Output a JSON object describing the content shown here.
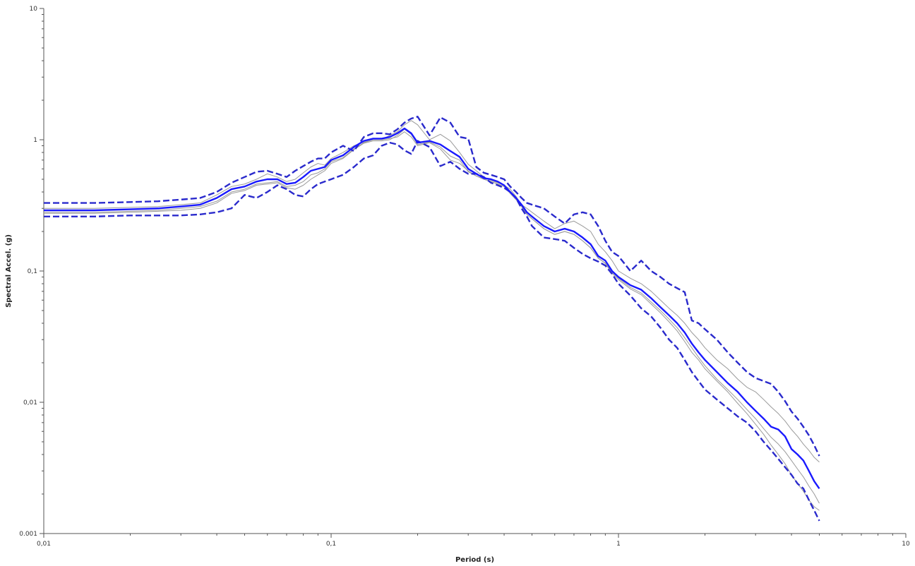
{
  "colors": {
    "background": "#ffffff",
    "axis": "#555555",
    "median": "#1a1aff",
    "bounds": "#2a2acc",
    "records": "#9a9a9a"
  },
  "chart_data": {
    "type": "line",
    "title": "",
    "xlabel": "Period (s)",
    "ylabel": "Spectral Accel. (g)",
    "xscale": "log",
    "yscale": "log",
    "xlim": [
      0.01,
      10
    ],
    "ylim": [
      0.001,
      10
    ],
    "grid": false,
    "legend": "none",
    "x_ticks": [
      {
        "value": 0.01,
        "label": "0,01"
      },
      {
        "value": 0.1,
        "label": "0,1"
      },
      {
        "value": 1,
        "label": "1"
      },
      {
        "value": 10,
        "label": "10"
      }
    ],
    "y_ticks": [
      {
        "value": 0.001,
        "label": "0.001"
      },
      {
        "value": 0.01,
        "label": "0,01"
      },
      {
        "value": 0.1,
        "label": "0,1"
      },
      {
        "value": 1,
        "label": "1"
      },
      {
        "value": 10,
        "label": "10"
      }
    ],
    "x": [
      0.01,
      0.015,
      0.02,
      0.025,
      0.03,
      0.035,
      0.04,
      0.045,
      0.05,
      0.055,
      0.06,
      0.065,
      0.07,
      0.075,
      0.08,
      0.085,
      0.09,
      0.095,
      0.1,
      0.11,
      0.12,
      0.13,
      0.14,
      0.15,
      0.16,
      0.17,
      0.18,
      0.19,
      0.2,
      0.22,
      0.24,
      0.26,
      0.28,
      0.3,
      0.32,
      0.34,
      0.36,
      0.38,
      0.4,
      0.42,
      0.44,
      0.46,
      0.48,
      0.5,
      0.55,
      0.6,
      0.65,
      0.7,
      0.75,
      0.8,
      0.85,
      0.9,
      0.95,
      1,
      1.1,
      1.2,
      1.3,
      1.4,
      1.5,
      1.6,
      1.7,
      1.8,
      1.9,
      2,
      2.2,
      2.4,
      2.6,
      2.8,
      3,
      3.2,
      3.4,
      3.6,
      3.8,
      4,
      4.2,
      4.4,
      4.6,
      4.8,
      5
    ],
    "series": [
      {
        "role": "median",
        "style": "solid",
        "values": [
          0.29,
          0.29,
          0.295,
          0.3,
          0.31,
          0.32,
          0.36,
          0.42,
          0.44,
          0.48,
          0.5,
          0.5,
          0.46,
          0.47,
          0.52,
          0.58,
          0.6,
          0.62,
          0.7,
          0.76,
          0.88,
          0.98,
          1.02,
          1.02,
          1.05,
          1.12,
          1.22,
          1.12,
          0.95,
          0.98,
          0.92,
          0.82,
          0.74,
          0.6,
          0.55,
          0.51,
          0.5,
          0.48,
          0.45,
          0.4,
          0.36,
          0.32,
          0.28,
          0.26,
          0.22,
          0.2,
          0.21,
          0.2,
          0.18,
          0.16,
          0.13,
          0.12,
          0.1,
          0.09,
          0.078,
          0.072,
          0.062,
          0.053,
          0.046,
          0.04,
          0.034,
          0.028,
          0.024,
          0.021,
          0.017,
          0.014,
          0.012,
          0.01,
          0.0086,
          0.0075,
          0.0065,
          0.0062,
          0.0055,
          0.0044,
          0.004,
          0.0036,
          0.003,
          0.0025,
          0.0022
        ]
      },
      {
        "role": "upper",
        "style": "dashed",
        "values": [
          0.33,
          0.33,
          0.335,
          0.34,
          0.35,
          0.36,
          0.4,
          0.47,
          0.52,
          0.57,
          0.58,
          0.55,
          0.52,
          0.58,
          0.63,
          0.68,
          0.72,
          0.72,
          0.8,
          0.9,
          0.82,
          1.05,
          1.12,
          1.12,
          1.1,
          1.2,
          1.35,
          1.45,
          1.5,
          1.08,
          1.48,
          1.35,
          1.05,
          1.02,
          0.62,
          0.56,
          0.54,
          0.52,
          0.5,
          0.44,
          0.4,
          0.36,
          0.33,
          0.32,
          0.3,
          0.26,
          0.23,
          0.27,
          0.28,
          0.27,
          0.22,
          0.17,
          0.14,
          0.13,
          0.1,
          0.12,
          0.1,
          0.09,
          0.08,
          0.074,
          0.069,
          0.042,
          0.04,
          0.036,
          0.03,
          0.024,
          0.02,
          0.017,
          0.0153,
          0.0145,
          0.0138,
          0.012,
          0.0102,
          0.0085,
          0.0075,
          0.0065,
          0.0056,
          0.0047,
          0.0039
        ]
      },
      {
        "role": "lower",
        "style": "dashed",
        "values": [
          0.26,
          0.26,
          0.265,
          0.265,
          0.265,
          0.27,
          0.28,
          0.3,
          0.38,
          0.36,
          0.4,
          0.45,
          0.42,
          0.38,
          0.37,
          0.42,
          0.46,
          0.48,
          0.5,
          0.54,
          0.62,
          0.72,
          0.76,
          0.9,
          0.95,
          0.92,
          0.83,
          0.78,
          0.98,
          0.88,
          0.63,
          0.68,
          0.6,
          0.55,
          0.55,
          0.52,
          0.47,
          0.45,
          0.43,
          0.4,
          0.36,
          0.3,
          0.26,
          0.22,
          0.18,
          0.175,
          0.17,
          0.15,
          0.135,
          0.125,
          0.118,
          0.11,
          0.095,
          0.08,
          0.065,
          0.052,
          0.045,
          0.037,
          0.03,
          0.026,
          0.021,
          0.017,
          0.0145,
          0.0125,
          0.0105,
          0.009,
          0.0078,
          0.007,
          0.006,
          0.005,
          0.0043,
          0.0037,
          0.0032,
          0.0028,
          0.0024,
          0.0022,
          0.0018,
          0.0015,
          0.00125
        ]
      },
      {
        "role": "record",
        "style": "thin",
        "values": [
          0.3,
          0.3,
          0.305,
          0.31,
          0.32,
          0.33,
          0.38,
          0.44,
          0.46,
          0.5,
          0.55,
          0.52,
          0.48,
          0.5,
          0.56,
          0.62,
          0.66,
          0.64,
          0.72,
          0.8,
          0.9,
          0.96,
          1.0,
          1.0,
          1.08,
          1.15,
          1.3,
          1.4,
          1.3,
          1.0,
          1.1,
          0.98,
          0.8,
          0.65,
          0.58,
          0.52,
          0.49,
          0.47,
          0.45,
          0.42,
          0.37,
          0.32,
          0.3,
          0.28,
          0.24,
          0.21,
          0.23,
          0.24,
          0.22,
          0.2,
          0.16,
          0.14,
          0.12,
          0.1,
          0.088,
          0.08,
          0.07,
          0.06,
          0.052,
          0.046,
          0.04,
          0.034,
          0.03,
          0.026,
          0.021,
          0.018,
          0.015,
          0.013,
          0.012,
          0.0105,
          0.0092,
          0.0082,
          0.0072,
          0.0062,
          0.0055,
          0.0048,
          0.0043,
          0.0038,
          0.0035
        ]
      },
      {
        "role": "record",
        "style": "thin",
        "values": [
          0.28,
          0.28,
          0.285,
          0.29,
          0.3,
          0.31,
          0.34,
          0.4,
          0.42,
          0.46,
          0.47,
          0.48,
          0.44,
          0.45,
          0.48,
          0.54,
          0.56,
          0.6,
          0.68,
          0.73,
          0.85,
          0.95,
          1.0,
          1.0,
          1.02,
          1.05,
          1.15,
          1.05,
          0.9,
          0.95,
          0.85,
          0.7,
          0.66,
          0.58,
          0.53,
          0.5,
          0.48,
          0.46,
          0.44,
          0.39,
          0.35,
          0.31,
          0.27,
          0.25,
          0.21,
          0.19,
          0.2,
          0.19,
          0.17,
          0.15,
          0.125,
          0.115,
          0.098,
          0.088,
          0.075,
          0.068,
          0.058,
          0.05,
          0.043,
          0.037,
          0.031,
          0.026,
          0.022,
          0.019,
          0.015,
          0.0125,
          0.0105,
          0.0088,
          0.0075,
          0.0063,
          0.0054,
          0.0048,
          0.0042,
          0.0036,
          0.0031,
          0.0027,
          0.0023,
          0.002,
          0.0017
        ]
      },
      {
        "role": "record",
        "style": "thin",
        "values": [
          0.275,
          0.275,
          0.28,
          0.285,
          0.29,
          0.3,
          0.33,
          0.39,
          0.41,
          0.45,
          0.46,
          0.47,
          0.43,
          0.42,
          0.45,
          0.5,
          0.54,
          0.58,
          0.66,
          0.72,
          0.84,
          0.94,
          0.98,
          0.98,
          1.0,
          1.08,
          1.2,
          1.1,
          0.92,
          0.96,
          0.88,
          0.75,
          0.7,
          0.57,
          0.53,
          0.5,
          0.48,
          0.46,
          0.44,
          0.39,
          0.35,
          0.31,
          0.27,
          0.25,
          0.21,
          0.19,
          0.2,
          0.19,
          0.17,
          0.15,
          0.126,
          0.114,
          0.096,
          0.086,
          0.073,
          0.066,
          0.056,
          0.048,
          0.041,
          0.035,
          0.029,
          0.024,
          0.021,
          0.018,
          0.0145,
          0.012,
          0.0098,
          0.0082,
          0.0068,
          0.0057,
          0.0047,
          0.004,
          0.0034,
          0.0028,
          0.0024,
          0.0021,
          0.0018,
          0.0016,
          0.0015
        ]
      }
    ]
  }
}
